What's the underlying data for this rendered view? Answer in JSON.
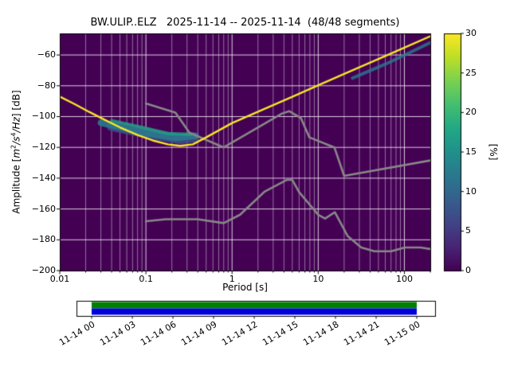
{
  "chart_data": {
    "type": "heatmap",
    "title": "BW.ULIP..ELZ   2025-11-14 -- 2025-11-14  (48/48 segments)",
    "xlabel": "Period [s]",
    "ylabel_parts": {
      "pre": "Amplitude [",
      "unit1": "m",
      "exp1": "2",
      "unit2": "/s",
      "exp2": "4",
      "unit3": "/Hz",
      "post": "] [dB]"
    },
    "x_scale": "log",
    "xlim": [
      0.01,
      200
    ],
    "ylim": [
      -200,
      -46
    ],
    "xticks": [
      0.01,
      0.1,
      1,
      10,
      100
    ],
    "xtick_labels": [
      "0.01",
      "0.1",
      "1",
      "10",
      "100"
    ],
    "yticks": [
      -60,
      -80,
      -100,
      -120,
      -140,
      -160,
      -180,
      -200
    ],
    "ytick_labels": [
      "−60",
      "−80",
      "−100",
      "−120",
      "−140",
      "−160",
      "−180",
      "−200"
    ],
    "background_color": "#440154",
    "grid_major_color": "rgba(255,255,255,0.8)",
    "grid_minor_color": "rgba(255,255,255,0.55)",
    "colorbar": {
      "label": "[%]",
      "range": [
        0,
        30
      ],
      "ticks": [
        0,
        5,
        10,
        15,
        20,
        25,
        30
      ],
      "tick_labels": [
        "0",
        "5",
        "10",
        "15",
        "20",
        "25",
        "30"
      ],
      "gradient": [
        {
          "stop": 0.0,
          "color": "#440154"
        },
        {
          "stop": 0.1,
          "color": "#482475"
        },
        {
          "stop": 0.2,
          "color": "#414487"
        },
        {
          "stop": 0.3,
          "color": "#355f8d"
        },
        {
          "stop": 0.4,
          "color": "#2a788e"
        },
        {
          "stop": 0.5,
          "color": "#21918c"
        },
        {
          "stop": 0.6,
          "color": "#22a884"
        },
        {
          "stop": 0.7,
          "color": "#44bf70"
        },
        {
          "stop": 0.8,
          "color": "#7ad151"
        },
        {
          "stop": 0.9,
          "color": "#bddf26"
        },
        {
          "stop": 1.0,
          "color": "#fde725"
        }
      ]
    },
    "psd_mode_line": {
      "name": "psd-distribution-mode",
      "color": "#f5e626",
      "width": 2.4,
      "points": [
        [
          0.01,
          -87
        ],
        [
          0.015,
          -92
        ],
        [
          0.022,
          -97
        ],
        [
          0.033,
          -102
        ],
        [
          0.05,
          -107
        ],
        [
          0.08,
          -112
        ],
        [
          0.12,
          -115.5
        ],
        [
          0.18,
          -118
        ],
        [
          0.25,
          -119
        ],
        [
          0.35,
          -118
        ],
        [
          0.5,
          -113.5
        ],
        [
          0.7,
          -109
        ],
        [
          1,
          -104.2
        ],
        [
          2,
          -96.8
        ],
        [
          5,
          -87.1
        ],
        [
          10,
          -79.7
        ],
        [
          20,
          -72.3
        ],
        [
          50,
          -62.6
        ],
        [
          100,
          -55.2
        ],
        [
          200,
          -47.8
        ]
      ]
    },
    "distribution_smears": [
      {
        "color": "rgba(59,82,139,0.85)",
        "width": 13,
        "points": [
          [
            0.04,
            -106
          ],
          [
            0.08,
            -109.5
          ],
          [
            0.15,
            -112.5
          ],
          [
            0.25,
            -114.5
          ],
          [
            0.35,
            -113.5
          ]
        ]
      },
      {
        "color": "rgba(42,120,142,0.9)",
        "width": 8,
        "points": [
          [
            0.03,
            -104
          ],
          [
            0.06,
            -108
          ],
          [
            0.12,
            -111.5
          ],
          [
            0.22,
            -114
          ],
          [
            0.38,
            -112.5
          ]
        ]
      },
      {
        "color": "rgba(34,168,132,0.75)",
        "width": 4,
        "points": [
          [
            0.04,
            -102.5
          ],
          [
            0.09,
            -107
          ],
          [
            0.18,
            -111
          ],
          [
            0.33,
            -111.5
          ]
        ]
      },
      {
        "color": "rgba(42,120,142,0.8)",
        "width": 4,
        "points": [
          [
            25,
            -75
          ],
          [
            60,
            -66
          ],
          [
            120,
            -58
          ],
          [
            200,
            -52
          ]
        ]
      }
    ],
    "noise_models": {
      "color": "#888888",
      "width": 2.6,
      "high": [
        [
          0.1,
          -91.5
        ],
        [
          0.22,
          -97.4
        ],
        [
          0.32,
          -110.5
        ],
        [
          0.8,
          -120
        ],
        [
          3.8,
          -98
        ],
        [
          4.6,
          -96.5
        ],
        [
          6.3,
          -101
        ],
        [
          7.9,
          -113.5
        ],
        [
          15.4,
          -120
        ],
        [
          20,
          -138.5
        ],
        [
          200,
          -128.5
        ]
      ],
      "low": [
        [
          0.1,
          -168
        ],
        [
          0.17,
          -166.7
        ],
        [
          0.4,
          -166.7
        ],
        [
          0.8,
          -169.2
        ],
        [
          1.24,
          -163.7
        ],
        [
          2.4,
          -148.6
        ],
        [
          4.3,
          -141.1
        ],
        [
          5,
          -141.1
        ],
        [
          6,
          -149
        ],
        [
          10,
          -163.8
        ],
        [
          12,
          -166.2
        ],
        [
          15.6,
          -162.1
        ],
        [
          21.9,
          -177.5
        ],
        [
          31.6,
          -185
        ],
        [
          45,
          -187.5
        ],
        [
          70,
          -187.5
        ],
        [
          101,
          -185
        ],
        [
          154,
          -185
        ],
        [
          200,
          -186
        ]
      ]
    },
    "timeline": {
      "tick_labels": [
        "11-14 00",
        "11-14 03",
        "11-14 06",
        "11-14 09",
        "11-14 12",
        "11-14 15",
        "11-14 18",
        "11-14 21",
        "11-15 00"
      ],
      "coverage_color": "#008000",
      "extent_color": "#0000dd",
      "box_color": "#ffffff",
      "border_color": "#000000"
    }
  }
}
